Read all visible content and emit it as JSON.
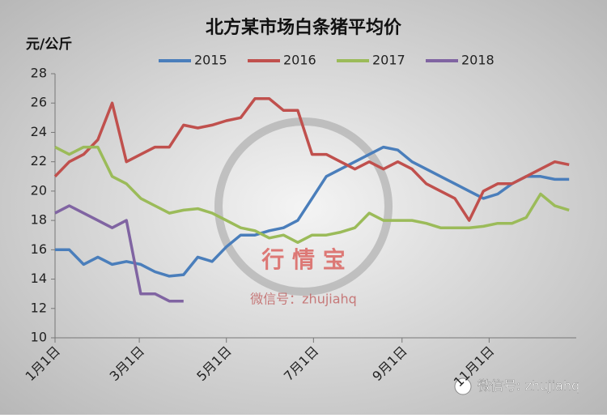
{
  "chart_data": {
    "type": "line",
    "title": "北方某市场白条猪平均价",
    "y_label": "元/公斤",
    "annotations": [
      "行 情 宝",
      "微信号：zhujiahq",
      "微信号: zhujiahq"
    ],
    "x": [
      1,
      11,
      21,
      31,
      41,
      51,
      61,
      71,
      81,
      91,
      101,
      111,
      121,
      131,
      141,
      151,
      161,
      171,
      181,
      191,
      201,
      211,
      221,
      231,
      241,
      251,
      261,
      271,
      281,
      291,
      301,
      311,
      321,
      331,
      341,
      351,
      361
    ],
    "xlim": [
      1,
      366
    ],
    "xticks": [
      {
        "value": 1,
        "label": "1月1日"
      },
      {
        "value": 60,
        "label": "3月1日"
      },
      {
        "value": 121,
        "label": "5月1日"
      },
      {
        "value": 182,
        "label": "7月1日"
      },
      {
        "value": 244,
        "label": "9月1日"
      },
      {
        "value": 305,
        "label": "11月1日"
      }
    ],
    "ylim": [
      10,
      28
    ],
    "yticks": [
      10,
      12,
      14,
      16,
      18,
      20,
      22,
      24,
      26,
      28
    ],
    "series": [
      {
        "name": "2015",
        "color": "#4a7ebb",
        "values": [
          16,
          16,
          15,
          15.5,
          15,
          15.2,
          15,
          14.5,
          14.2,
          14.3,
          15.5,
          15.2,
          16.2,
          17,
          17,
          17.3,
          17.5,
          18,
          19.5,
          21,
          21.5,
          22,
          22.5,
          23,
          22.8,
          22,
          21.5,
          21,
          20.5,
          20,
          19.5,
          19.8,
          20.5,
          21,
          21,
          20.8,
          20.8
        ]
      },
      {
        "name": "2016",
        "color": "#c0504d",
        "values": [
          21,
          22,
          22.5,
          23.5,
          26,
          22,
          22.5,
          23,
          23,
          24.5,
          24.3,
          24.5,
          24.8,
          25,
          26.3,
          26.3,
          25.5,
          25.5,
          22.5,
          22.5,
          22,
          21.5,
          22,
          21.5,
          22,
          21.5,
          20.5,
          20,
          19.5,
          18,
          20,
          20.5,
          20.5,
          21,
          21.5,
          22,
          21.8
        ]
      },
      {
        "name": "2017",
        "color": "#9bbb59",
        "values": [
          23,
          22.5,
          23,
          23,
          21,
          20.5,
          19.5,
          19,
          18.5,
          18.7,
          18.8,
          18.5,
          18,
          17.5,
          17.3,
          16.8,
          17,
          16.5,
          17,
          17,
          17.2,
          17.5,
          18.5,
          18,
          18,
          18,
          17.8,
          17.5,
          17.5,
          17.5,
          17.6,
          17.8,
          17.8,
          18.2,
          19.8,
          19,
          18.7
        ]
      },
      {
        "name": "2018",
        "color": "#8064a2",
        "values": [
          18.5,
          19,
          18.5,
          18,
          17.5,
          18,
          13,
          13,
          12.5,
          12.5,
          null,
          null,
          null,
          null,
          null,
          null,
          null,
          null,
          null,
          null,
          null,
          null,
          null,
          null,
          null,
          null,
          null,
          null,
          null,
          null,
          null,
          null,
          null,
          null,
          null,
          null,
          null
        ]
      }
    ]
  }
}
